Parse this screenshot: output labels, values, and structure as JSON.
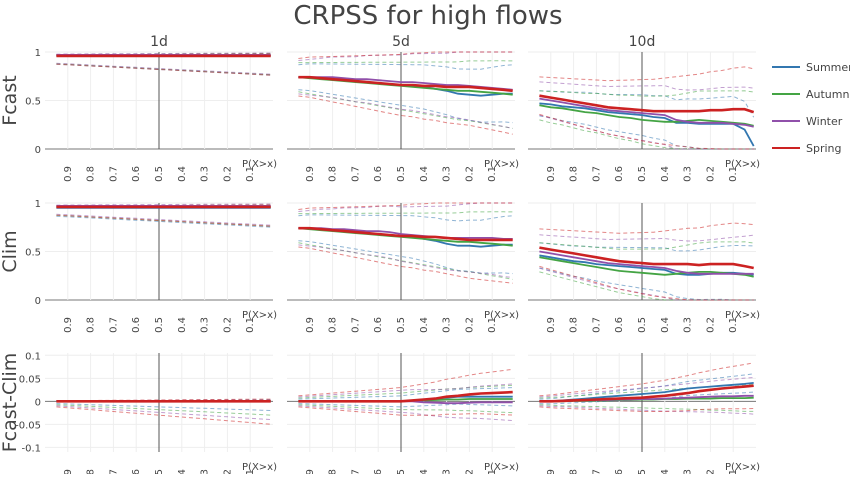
{
  "title": "CRPSS for high flows",
  "columns": [
    "1d",
    "5d",
    "10d"
  ],
  "rows": [
    "Fcast",
    "Clim",
    "Fcast-Clim"
  ],
  "x_axis_label": "P(X>x)",
  "x_ticks": [
    "0.9",
    "0.8",
    "0.7",
    "0.6",
    "0.5",
    "0.4",
    "0.3",
    "0.2",
    "0.1"
  ],
  "y_ticks_main": [
    "0",
    "0.5",
    "1"
  ],
  "y_ticks_diff": [
    "-0.1",
    "-0.05",
    "0",
    "0.05",
    "0.1"
  ],
  "legend": [
    {
      "name": "Summer",
      "color": "#3377b0"
    },
    {
      "name": "Autumn",
      "color": "#44a444"
    },
    {
      "name": "Winter",
      "color": "#9050aa"
    },
    {
      "name": "Spring",
      "color": "#cc2222"
    }
  ],
  "chart_data": {
    "type": "line",
    "x_description": "exceedance probability P(X>x), decreasing to the right",
    "ylim_main": [
      0,
      1
    ],
    "ylim_diff": [
      -0.12,
      0.1
    ],
    "x": [
      0.95,
      0.9,
      0.85,
      0.8,
      0.75,
      0.7,
      0.65,
      0.6,
      0.55,
      0.5,
      0.45,
      0.4,
      0.35,
      0.3,
      0.25,
      0.2,
      0.15,
      0.1,
      0.05,
      0.01
    ],
    "panels": [
      {
        "row": "Fcast",
        "col": "1d",
        "series": [
          {
            "name": "Summer",
            "values": [
              0.96,
              0.96,
              0.96,
              0.96,
              0.96,
              0.96,
              0.96,
              0.96,
              0.96,
              0.96,
              0.96,
              0.96,
              0.96,
              0.96,
              0.96,
              0.96,
              0.96,
              0.96,
              0.96,
              0.96
            ]
          },
          {
            "name": "Autumn",
            "values": [
              0.965,
              0.965,
              0.965,
              0.965,
              0.965,
              0.965,
              0.965,
              0.965,
              0.965,
              0.965,
              0.965,
              0.965,
              0.965,
              0.965,
              0.965,
              0.965,
              0.965,
              0.965,
              0.965,
              0.965
            ]
          },
          {
            "name": "Winter",
            "values": [
              0.97,
              0.97,
              0.97,
              0.97,
              0.97,
              0.97,
              0.97,
              0.97,
              0.97,
              0.97,
              0.97,
              0.97,
              0.97,
              0.97,
              0.97,
              0.97,
              0.97,
              0.97,
              0.97,
              0.97
            ]
          },
          {
            "name": "Spring",
            "values": [
              0.96,
              0.96,
              0.96,
              0.96,
              0.96,
              0.96,
              0.96,
              0.96,
              0.96,
              0.96,
              0.96,
              0.96,
              0.96,
              0.96,
              0.96,
              0.96,
              0.96,
              0.96,
              0.96,
              0.96
            ]
          }
        ]
      },
      {
        "row": "Fcast",
        "col": "5d",
        "series": [
          {
            "name": "Summer",
            "values": [
              0.74,
              0.74,
              0.73,
              0.72,
              0.71,
              0.7,
              0.69,
              0.68,
              0.67,
              0.66,
              0.65,
              0.64,
              0.62,
              0.6,
              0.57,
              0.56,
              0.55,
              0.56,
              0.57,
              0.57
            ]
          },
          {
            "name": "Autumn",
            "values": [
              0.74,
              0.73,
              0.72,
              0.71,
              0.7,
              0.69,
              0.68,
              0.67,
              0.66,
              0.65,
              0.64,
              0.63,
              0.62,
              0.61,
              0.6,
              0.6,
              0.59,
              0.58,
              0.57,
              0.56
            ]
          },
          {
            "name": "Winter",
            "values": [
              0.74,
              0.74,
              0.74,
              0.74,
              0.73,
              0.72,
              0.72,
              0.71,
              0.7,
              0.69,
              0.69,
              0.68,
              0.67,
              0.66,
              0.66,
              0.65,
              0.64,
              0.63,
              0.62,
              0.61
            ]
          },
          {
            "name": "Spring",
            "values": [
              0.74,
              0.74,
              0.73,
              0.72,
              0.71,
              0.7,
              0.69,
              0.68,
              0.67,
              0.66,
              0.66,
              0.65,
              0.65,
              0.64,
              0.64,
              0.64,
              0.63,
              0.62,
              0.61,
              0.6
            ]
          }
        ]
      },
      {
        "row": "Fcast",
        "col": "10d",
        "series": [
          {
            "name": "Summer",
            "values": [
              0.47,
              0.46,
              0.44,
              0.43,
              0.42,
              0.4,
              0.38,
              0.37,
              0.36,
              0.35,
              0.33,
              0.32,
              0.27,
              0.27,
              0.26,
              0.26,
              0.26,
              0.26,
              0.2,
              0.03
            ]
          },
          {
            "name": "Autumn",
            "values": [
              0.45,
              0.43,
              0.42,
              0.4,
              0.38,
              0.37,
              0.35,
              0.33,
              0.32,
              0.3,
              0.29,
              0.28,
              0.28,
              0.29,
              0.3,
              0.29,
              0.28,
              0.27,
              0.26,
              0.24
            ]
          },
          {
            "name": "Winter",
            "values": [
              0.52,
              0.5,
              0.48,
              0.46,
              0.44,
              0.42,
              0.4,
              0.39,
              0.38,
              0.37,
              0.36,
              0.35,
              0.3,
              0.28,
              0.27,
              0.27,
              0.27,
              0.26,
              0.25,
              0.23
            ]
          },
          {
            "name": "Spring",
            "values": [
              0.55,
              0.53,
              0.51,
              0.49,
              0.47,
              0.45,
              0.43,
              0.42,
              0.41,
              0.4,
              0.39,
              0.39,
              0.39,
              0.39,
              0.39,
              0.4,
              0.4,
              0.41,
              0.41,
              0.38
            ]
          }
        ]
      },
      {
        "row": "Clim",
        "col": "1d",
        "series": [
          {
            "name": "Summer",
            "values": [
              0.95,
              0.95,
              0.95,
              0.95,
              0.95,
              0.95,
              0.95,
              0.95,
              0.95,
              0.95,
              0.95,
              0.95,
              0.95,
              0.95,
              0.95,
              0.95,
              0.95,
              0.95,
              0.95,
              0.95
            ]
          },
          {
            "name": "Autumn",
            "values": [
              0.96,
              0.96,
              0.96,
              0.96,
              0.96,
              0.96,
              0.96,
              0.96,
              0.96,
              0.96,
              0.96,
              0.96,
              0.96,
              0.96,
              0.96,
              0.96,
              0.96,
              0.96,
              0.96,
              0.96
            ]
          },
          {
            "name": "Winter",
            "values": [
              0.97,
              0.97,
              0.97,
              0.97,
              0.97,
              0.97,
              0.97,
              0.97,
              0.97,
              0.97,
              0.97,
              0.97,
              0.97,
              0.97,
              0.97,
              0.97,
              0.97,
              0.97,
              0.97,
              0.97
            ]
          },
          {
            "name": "Spring",
            "values": [
              0.96,
              0.96,
              0.96,
              0.96,
              0.96,
              0.96,
              0.96,
              0.96,
              0.96,
              0.96,
              0.96,
              0.96,
              0.96,
              0.96,
              0.96,
              0.96,
              0.96,
              0.96,
              0.96,
              0.96
            ]
          }
        ]
      },
      {
        "row": "Clim",
        "col": "5d",
        "series": [
          {
            "name": "Summer",
            "values": [
              0.74,
              0.74,
              0.73,
              0.72,
              0.71,
              0.7,
              0.69,
              0.68,
              0.67,
              0.66,
              0.65,
              0.63,
              0.61,
              0.58,
              0.56,
              0.56,
              0.55,
              0.56,
              0.57,
              0.57
            ]
          },
          {
            "name": "Autumn",
            "values": [
              0.74,
              0.73,
              0.72,
              0.71,
              0.7,
              0.69,
              0.68,
              0.67,
              0.66,
              0.65,
              0.64,
              0.63,
              0.62,
              0.61,
              0.6,
              0.6,
              0.59,
              0.58,
              0.57,
              0.56
            ]
          },
          {
            "name": "Winter",
            "values": [
              0.74,
              0.74,
              0.74,
              0.73,
              0.73,
              0.72,
              0.71,
              0.71,
              0.7,
              0.68,
              0.67,
              0.66,
              0.65,
              0.64,
              0.64,
              0.64,
              0.64,
              0.64,
              0.63,
              0.63
            ]
          },
          {
            "name": "Spring",
            "values": [
              0.74,
              0.74,
              0.73,
              0.72,
              0.71,
              0.7,
              0.69,
              0.68,
              0.67,
              0.66,
              0.66,
              0.65,
              0.65,
              0.64,
              0.63,
              0.62,
              0.62,
              0.62,
              0.62,
              0.62
            ]
          }
        ]
      },
      {
        "row": "Clim",
        "col": "10d",
        "series": [
          {
            "name": "Summer",
            "values": [
              0.46,
              0.44,
              0.42,
              0.4,
              0.39,
              0.37,
              0.36,
              0.35,
              0.34,
              0.33,
              0.32,
              0.31,
              0.27,
              0.26,
              0.26,
              0.27,
              0.28,
              0.28,
              0.27,
              0.26
            ]
          },
          {
            "name": "Autumn",
            "values": [
              0.44,
              0.42,
              0.4,
              0.38,
              0.36,
              0.34,
              0.32,
              0.3,
              0.29,
              0.28,
              0.27,
              0.26,
              0.27,
              0.28,
              0.29,
              0.29,
              0.28,
              0.27,
              0.26,
              0.24
            ]
          },
          {
            "name": "Winter",
            "values": [
              0.5,
              0.48,
              0.46,
              0.44,
              0.42,
              0.4,
              0.38,
              0.37,
              0.36,
              0.35,
              0.34,
              0.33,
              0.3,
              0.28,
              0.27,
              0.27,
              0.27,
              0.27,
              0.27,
              0.27
            ]
          },
          {
            "name": "Spring",
            "values": [
              0.54,
              0.52,
              0.5,
              0.48,
              0.46,
              0.44,
              0.42,
              0.4,
              0.39,
              0.38,
              0.37,
              0.37,
              0.37,
              0.37,
              0.36,
              0.37,
              0.37,
              0.37,
              0.35,
              0.33
            ]
          }
        ]
      },
      {
        "row": "Fcast-Clim",
        "col": "1d",
        "series": [
          {
            "name": "Summer",
            "values": [
              0,
              0,
              0,
              0,
              0,
              0,
              0,
              0,
              0,
              0,
              0,
              0,
              0,
              0,
              0,
              0,
              0,
              0,
              0,
              0
            ]
          },
          {
            "name": "Autumn",
            "values": [
              0,
              0,
              0,
              0,
              0,
              0,
              0,
              0,
              0,
              0,
              0,
              0,
              0,
              0,
              0,
              0,
              0,
              0,
              0,
              0
            ]
          },
          {
            "name": "Winter",
            "values": [
              0,
              0,
              0,
              0,
              0,
              0,
              0,
              0,
              0,
              0,
              0,
              0,
              0,
              0,
              0,
              0,
              0,
              0,
              0,
              0
            ]
          },
          {
            "name": "Spring",
            "values": [
              0,
              0,
              0,
              0,
              0,
              0,
              0,
              0,
              0,
              0,
              0,
              0,
              0,
              0,
              0,
              0,
              0,
              0,
              0,
              0
            ]
          }
        ]
      },
      {
        "row": "Fcast-Clim",
        "col": "5d",
        "series": [
          {
            "name": "Summer",
            "values": [
              0,
              0,
              0,
              0,
              0,
              0,
              0,
              0,
              0,
              0,
              0.002,
              0.004,
              0.006,
              0.008,
              0.01,
              0.01,
              0.01,
              0.01,
              0.01,
              0.01
            ]
          },
          {
            "name": "Autumn",
            "values": [
              0,
              0,
              0,
              0,
              0,
              0,
              0,
              0,
              0,
              0,
              0.001,
              0.002,
              0.003,
              0.004,
              0.004,
              0.005,
              0.005,
              0.005,
              0.005,
              0.005
            ]
          },
          {
            "name": "Winter",
            "values": [
              0,
              0,
              0,
              0,
              0,
              0,
              0,
              0,
              0,
              0,
              0,
              -0.002,
              -0.003,
              -0.004,
              -0.004,
              -0.003,
              -0.002,
              -0.002,
              -0.002,
              -0.002
            ]
          },
          {
            "name": "Spring",
            "values": [
              0,
              0,
              0,
              0,
              0,
              0,
              0,
              0,
              0,
              0,
              0.002,
              0.004,
              0.006,
              0.01,
              0.012,
              0.015,
              0.017,
              0.018,
              0.019,
              0.02
            ]
          }
        ]
      },
      {
        "row": "Fcast-Clim",
        "col": "10d",
        "series": [
          {
            "name": "Summer",
            "values": [
              0,
              0,
              0.002,
              0.004,
              0.006,
              0.008,
              0.01,
              0.012,
              0.014,
              0.016,
              0.018,
              0.02,
              0.024,
              0.028,
              0.03,
              0.032,
              0.034,
              0.036,
              0.038,
              0.04
            ]
          },
          {
            "name": "Autumn",
            "values": [
              0,
              0,
              0,
              0.001,
              0.001,
              0.002,
              0.002,
              0.003,
              0.003,
              0.004,
              0.004,
              0.005,
              0.005,
              0.006,
              0.006,
              0.006,
              0.007,
              0.007,
              0.007,
              0.008
            ]
          },
          {
            "name": "Winter",
            "values": [
              0,
              0,
              0.001,
              0.002,
              0.002,
              0.003,
              0.003,
              0.004,
              0.004,
              0.005,
              0.005,
              0.006,
              0.007,
              0.008,
              0.009,
              0.01,
              0.011,
              0.011,
              0.012,
              0.012
            ]
          },
          {
            "name": "Spring",
            "values": [
              0,
              0,
              0.001,
              0.002,
              0.003,
              0.004,
              0.005,
              0.006,
              0.007,
              0.008,
              0.01,
              0.012,
              0.015,
              0.018,
              0.022,
              0.025,
              0.028,
              0.03,
              0.032,
              0.034
            ]
          }
        ]
      }
    ]
  }
}
